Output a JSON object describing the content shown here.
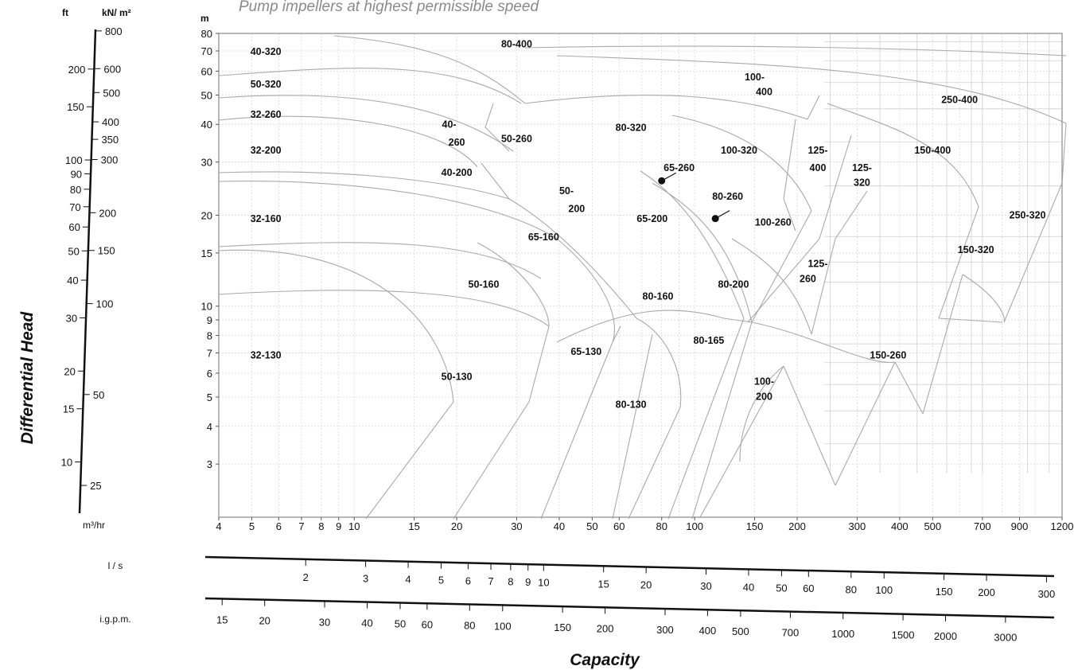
{
  "chart_data": {
    "type": "line",
    "title": "Pump impellers at highest permissible speed",
    "xlabel": "Capacity",
    "ylabel": "Differential Head",
    "x_scale": "log",
    "y_scale": "log",
    "xlim": [
      4,
      1200
    ],
    "ylim": [
      2,
      80
    ],
    "grid": true,
    "y_unit": "m",
    "x_unit": "m³/hr",
    "y_ticks": [
      "80",
      "70",
      "60",
      "50",
      "40",
      "30",
      "20",
      "15",
      "10",
      "9",
      "8",
      "7",
      "6",
      "5",
      "4",
      "3"
    ],
    "x_ticks": [
      "4",
      "5",
      "6",
      "7",
      "8",
      "9",
      "10",
      "15",
      "20",
      "30",
      "40",
      "50",
      "60",
      "80",
      "100",
      "150",
      "200",
      "300",
      "400",
      "500",
      "700",
      "900",
      "1200"
    ],
    "ft_scale": {
      "unit": "ft",
      "ticks": [
        "200",
        "150",
        "100",
        "90",
        "80",
        "70",
        "60",
        "50",
        "40",
        "30",
        "20",
        "15",
        "10"
      ]
    },
    "kn_scale": {
      "unit": "kN/ m²",
      "ticks": [
        "800",
        "600",
        "500",
        "400",
        "350",
        "300",
        "200",
        "150",
        "100",
        "50",
        "25"
      ]
    },
    "ls_scale": {
      "unit": "l / s",
      "ticks": [
        "2",
        "3",
        "4",
        "5",
        "6",
        "7",
        "8",
        "9",
        "10",
        "15",
        "20",
        "30",
        "40",
        "50",
        "60",
        "80",
        "100",
        "150",
        "200",
        "300"
      ]
    },
    "igpm_scale": {
      "unit": "i.g.p.m.",
      "ticks": [
        "15",
        "20",
        "30",
        "40",
        "50",
        "60",
        "80",
        "100",
        "150",
        "200",
        "300",
        "400",
        "500",
        "700",
        "1000",
        "1500",
        "2000",
        "3000"
      ]
    },
    "zones": [
      {
        "label": "40-320",
        "q": 5.5,
        "h": 68
      },
      {
        "label": "80-400",
        "q": 30,
        "h": 72
      },
      {
        "label": "100-",
        "q": 150,
        "h": 56
      },
      {
        "label": "400",
        "q": 160,
        "h": 50
      },
      {
        "label": "250-400",
        "q": 600,
        "h": 47
      },
      {
        "label": "50-320",
        "q": 5.5,
        "h": 53
      },
      {
        "label": "32-260",
        "q": 5.5,
        "h": 42
      },
      {
        "label": "40-",
        "q": 19,
        "h": 39
      },
      {
        "label": "260",
        "q": 20,
        "h": 34
      },
      {
        "label": "50-260",
        "q": 30,
        "h": 35
      },
      {
        "label": "80-320",
        "q": 65,
        "h": 38
      },
      {
        "label": "100-320",
        "q": 135,
        "h": 32
      },
      {
        "label": "125-",
        "q": 230,
        "h": 32
      },
      {
        "label": "400",
        "q": 230,
        "h": 28
      },
      {
        "label": "150-400",
        "q": 500,
        "h": 32
      },
      {
        "label": "32-200",
        "q": 5.5,
        "h": 32
      },
      {
        "label": "125-",
        "q": 310,
        "h": 28
      },
      {
        "label": "320",
        "q": 310,
        "h": 25
      },
      {
        "label": "40-200",
        "q": 20,
        "h": 27
      },
      {
        "label": "65-260",
        "q": 90,
        "h": 28
      },
      {
        "label": "50-",
        "q": 42,
        "h": 23.5
      },
      {
        "label": "200",
        "q": 45,
        "h": 20.5
      },
      {
        "label": "80-260",
        "q": 125,
        "h": 22.5
      },
      {
        "label": "32-160",
        "q": 5.5,
        "h": 19
      },
      {
        "label": "65-200",
        "q": 75,
        "h": 19
      },
      {
        "label": "100-260",
        "q": 170,
        "h": 18.5
      },
      {
        "label": "250-320",
        "q": 950,
        "h": 19.5
      },
      {
        "label": "65-160",
        "q": 36,
        "h": 16.5
      },
      {
        "label": "150-320",
        "q": 670,
        "h": 15
      },
      {
        "label": "125-",
        "q": 230,
        "h": 13.5
      },
      {
        "label": "260",
        "q": 215,
        "h": 12
      },
      {
        "label": "50-160",
        "q": 24,
        "h": 11.5
      },
      {
        "label": "80-200",
        "q": 130,
        "h": 11.5
      },
      {
        "label": "80-160",
        "q": 78,
        "h": 10.5
      },
      {
        "label": "80-165",
        "q": 110,
        "h": 7.5
      },
      {
        "label": "32-130",
        "q": 5.5,
        "h": 6.7
      },
      {
        "label": "65-130",
        "q": 48,
        "h": 6.9
      },
      {
        "label": "150-260",
        "q": 370,
        "h": 6.7
      },
      {
        "label": "50-130",
        "q": 20,
        "h": 5.7
      },
      {
        "label": "100-",
        "q": 160,
        "h": 5.5
      },
      {
        "label": "200",
        "q": 160,
        "h": 4.9
      },
      {
        "label": "80-130",
        "q": 65,
        "h": 4.6
      }
    ],
    "points": [
      {
        "name": "65-260",
        "q": 80,
        "h": 26
      },
      {
        "name": "80-260",
        "q": 115,
        "h": 19.5
      }
    ]
  }
}
